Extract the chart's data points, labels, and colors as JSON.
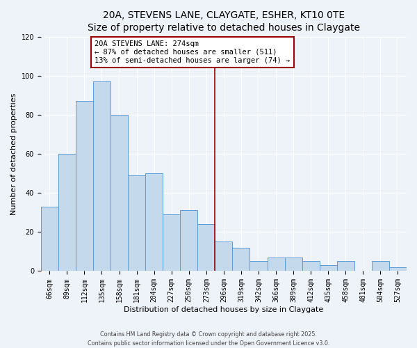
{
  "title": "20A, STEVENS LANE, CLAYGATE, ESHER, KT10 0TE",
  "subtitle": "Size of property relative to detached houses in Claygate",
  "xlabel": "Distribution of detached houses by size in Claygate",
  "ylabel": "Number of detached properties",
  "bar_labels": [
    "66sqm",
    "89sqm",
    "112sqm",
    "135sqm",
    "158sqm",
    "181sqm",
    "204sqm",
    "227sqm",
    "250sqm",
    "273sqm",
    "296sqm",
    "319sqm",
    "342sqm",
    "366sqm",
    "389sqm",
    "412sqm",
    "435sqm",
    "458sqm",
    "481sqm",
    "504sqm",
    "527sqm"
  ],
  "bar_values": [
    33,
    60,
    87,
    97,
    80,
    49,
    50,
    29,
    31,
    24,
    15,
    12,
    5,
    7,
    7,
    5,
    3,
    5,
    0,
    5,
    2
  ],
  "bar_color": "#c5d9ed",
  "bar_edge_color": "#5b9bd5",
  "vline_color": "#9b0000",
  "annotation_line1": "20A STEVENS LANE: 274sqm",
  "annotation_line2": "← 87% of detached houses are smaller (511)",
  "annotation_line3": "13% of semi-detached houses are larger (74) →",
  "annotation_box_edge": "#9b0000",
  "ylim": [
    0,
    120
  ],
  "yticks": [
    0,
    20,
    40,
    60,
    80,
    100,
    120
  ],
  "footnote1": "Contains HM Land Registry data © Crown copyright and database right 2025.",
  "footnote2": "Contains public sector information licensed under the Open Government Licence v3.0.",
  "bg_color": "#eef2f9",
  "grid_color": "#ffffff",
  "title_fontsize": 10,
  "subtitle_fontsize": 9,
  "tick_fontsize": 7,
  "label_fontsize": 8
}
